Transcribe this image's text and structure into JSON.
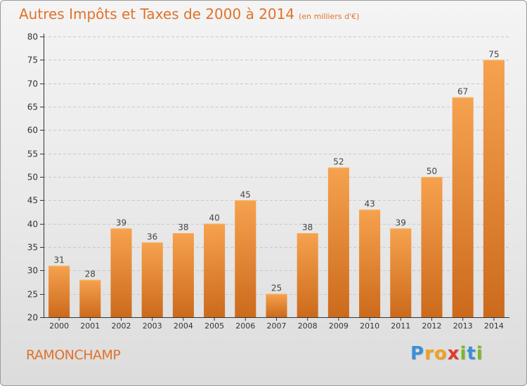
{
  "title": "Autres Impôts et Taxes de 2000 à 2014",
  "unit": "(en milliers d'€)",
  "commune": "RAMONCHAMP",
  "logo": {
    "text": "Proxiti",
    "letters": [
      {
        "ch": "P",
        "color": "#3a8fd8"
      },
      {
        "ch": "r",
        "color": "#f0a020"
      },
      {
        "ch": "o",
        "color": "#f0a020"
      },
      {
        "ch": "x",
        "color": "#e03a2a"
      },
      {
        "ch": "i",
        "color": "#7ab829"
      },
      {
        "ch": "t",
        "color": "#3a8fd8"
      },
      {
        "ch": "i",
        "color": "#7ab829"
      }
    ]
  },
  "colors": {
    "accent": "#e0722a",
    "bar_top": "#f6a24e",
    "bar_bottom": "#cc6a1c",
    "axis": "#333333",
    "grid": "#c8c8c8"
  },
  "chart_data": {
    "type": "bar",
    "categories": [
      "2000",
      "2001",
      "2002",
      "2003",
      "2004",
      "2005",
      "2006",
      "2007",
      "2008",
      "2009",
      "2010",
      "2011",
      "2012",
      "2013",
      "2014"
    ],
    "values": [
      31,
      28,
      39,
      36,
      38,
      40,
      45,
      25,
      38,
      52,
      43,
      39,
      50,
      67,
      75
    ],
    "ylim": [
      20,
      80
    ],
    "yticks": [
      20,
      25,
      30,
      35,
      40,
      45,
      50,
      55,
      60,
      65,
      70,
      75,
      80
    ],
    "grid": true,
    "data_labels": true
  }
}
